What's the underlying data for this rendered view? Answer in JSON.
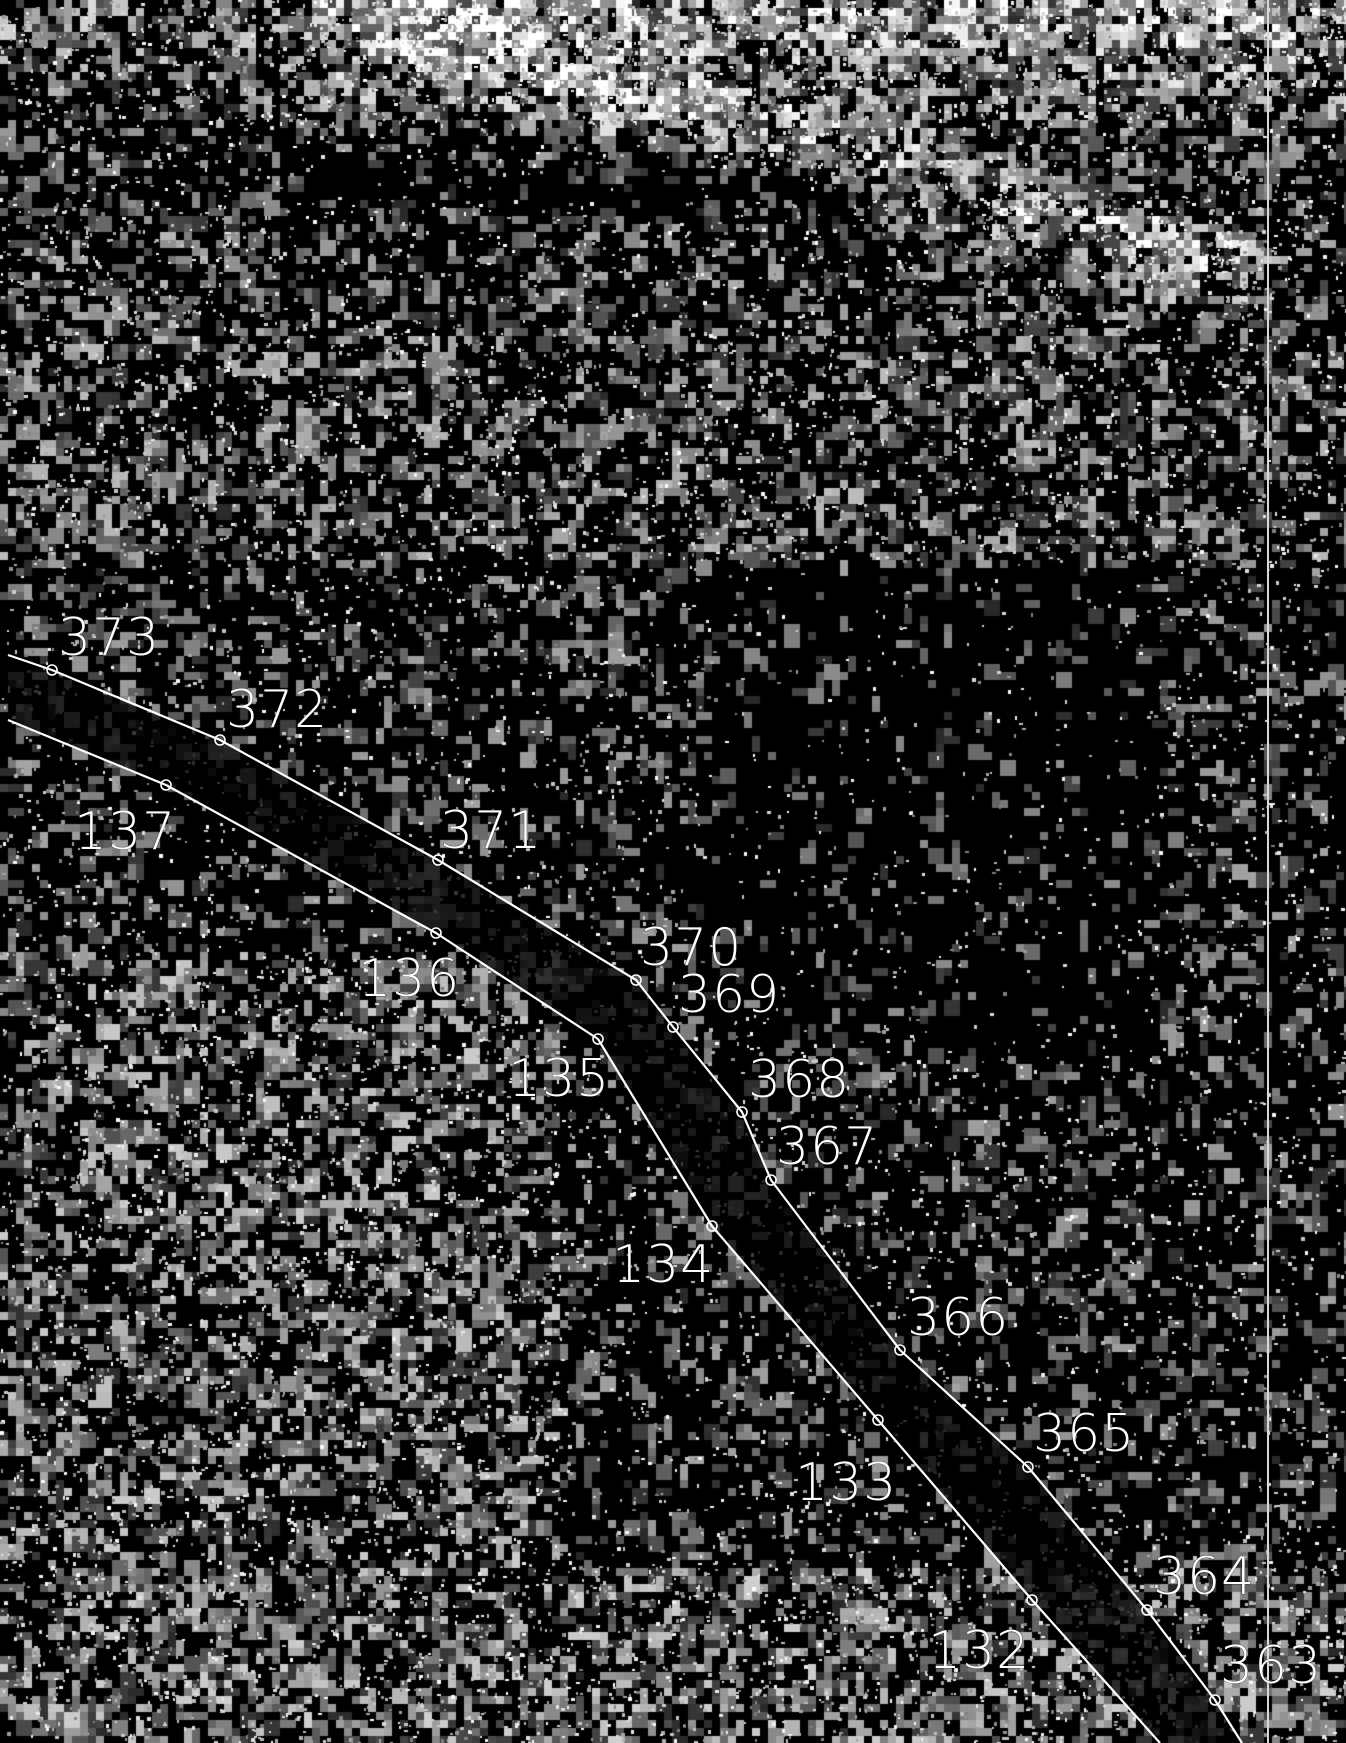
{
  "map": {
    "background_color": "#000000",
    "linework_color": "#ffffff",
    "imagery": "grayscale-aerial-photo",
    "upper_alignment": {
      "name": "upper-road-edge",
      "stations": [
        "373",
        "372",
        "371",
        "370",
        "369",
        "368",
        "367",
        "366",
        "365",
        "364",
        "363"
      ]
    },
    "lower_alignment": {
      "name": "lower-road-edge",
      "stations": [
        "137",
        "136",
        "135",
        "134",
        "133",
        "132"
      ]
    }
  }
}
